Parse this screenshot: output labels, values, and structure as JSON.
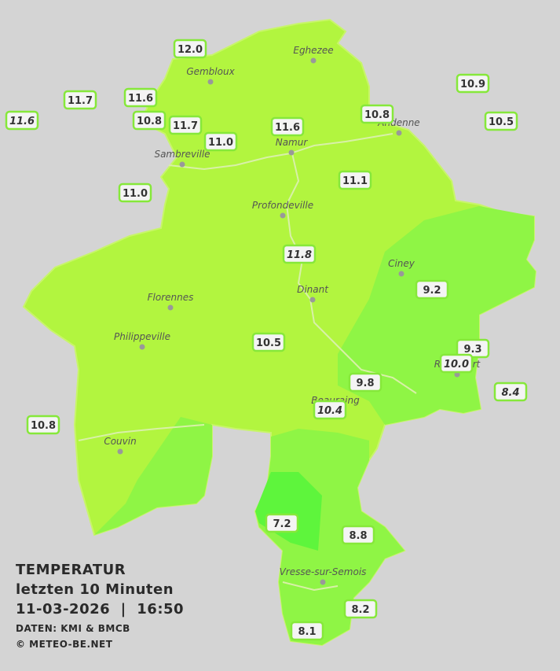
{
  "title": {
    "line1": "TEMPERATUR",
    "line2": "letzten 10 Minuten",
    "line3": "11-03-2026  |  16:50",
    "source": "DATEN: KMI & BMCB",
    "copyright": "© METEO-BE.NET"
  },
  "towns": [
    "Eghezee",
    "Gembloux",
    "Andenne",
    "Sambreville",
    "Namur",
    "Profondeville",
    "Ciney",
    "Florennes",
    "Dinant",
    "Philippeville",
    "Rochefort",
    "Beauraing",
    "Couvin",
    "Vresse-sur-Semois"
  ],
  "stations": [
    {
      "label": "12.0"
    },
    {
      "label": "11.7"
    },
    {
      "label": "11.6",
      "italic": true
    },
    {
      "label": "11.6"
    },
    {
      "label": "10.8"
    },
    {
      "label": "11.7"
    },
    {
      "label": "11.0"
    },
    {
      "label": "11.6"
    },
    {
      "label": "10.8"
    },
    {
      "label": "10.9"
    },
    {
      "label": "10.5"
    },
    {
      "label": "11.1"
    },
    {
      "label": "11.0"
    },
    {
      "label": "11.8",
      "italic": true
    },
    {
      "label": "9.2"
    },
    {
      "label": "10.5"
    },
    {
      "label": "9.3"
    },
    {
      "label": "10.0",
      "italic": true
    },
    {
      "label": "8.4",
      "italic": true
    },
    {
      "label": "9.8"
    },
    {
      "label": "10.4",
      "italic": true
    },
    {
      "label": "10.8"
    },
    {
      "label": "7.2"
    },
    {
      "label": "8.8"
    },
    {
      "label": "8.2"
    },
    {
      "label": "8.1"
    }
  ]
}
